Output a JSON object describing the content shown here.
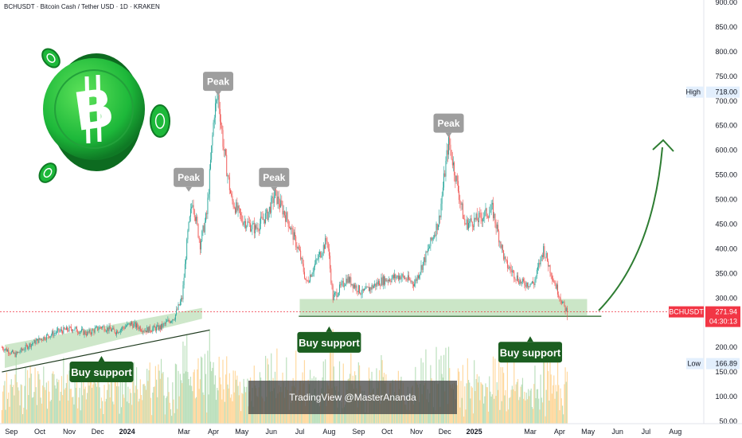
{
  "header": {
    "title": "BCHUSDT · Bitcoin Cash / Tether USD · 1D · KRAKEN"
  },
  "watermark": {
    "text": "TradingView @MasterAnanda"
  },
  "chart_data": {
    "type": "candlestick",
    "symbol": "BCHUSDT",
    "ylim": [
      45,
      905
    ],
    "y_ticks": [
      {
        "value": 50,
        "label": "50.00"
      },
      {
        "value": 100,
        "label": "100.00"
      },
      {
        "value": 150,
        "label": "150.00"
      },
      {
        "value": 200,
        "label": "200.00"
      },
      {
        "value": 250,
        "label": "250.00"
      },
      {
        "value": 300,
        "label": "300.00"
      },
      {
        "value": 350,
        "label": "350.00"
      },
      {
        "value": 400,
        "label": "400.00"
      },
      {
        "value": 450,
        "label": "450.00"
      },
      {
        "value": 500,
        "label": "500.00"
      },
      {
        "value": 550,
        "label": "550.00"
      },
      {
        "value": 600,
        "label": "600.00"
      },
      {
        "value": 650,
        "label": "650.00"
      },
      {
        "value": 700,
        "label": "700.00"
      },
      {
        "value": 750,
        "label": "750.00"
      },
      {
        "value": 800,
        "label": "800.00"
      },
      {
        "value": 850,
        "label": "850.00"
      },
      {
        "value": 900,
        "label": "900.00"
      }
    ],
    "x_ticks": [
      {
        "date": "2023-09-01",
        "label": "Sep",
        "bold": false
      },
      {
        "date": "2023-10-01",
        "label": "Oct",
        "bold": false
      },
      {
        "date": "2023-11-01",
        "label": "Nov",
        "bold": false
      },
      {
        "date": "2023-12-01",
        "label": "Dec",
        "bold": false
      },
      {
        "date": "2024-01-01",
        "label": "2024",
        "bold": true
      },
      {
        "date": "2024-03-01",
        "label": "Mar",
        "bold": false
      },
      {
        "date": "2024-04-01",
        "label": "Apr",
        "bold": false
      },
      {
        "date": "2024-05-01",
        "label": "May",
        "bold": false
      },
      {
        "date": "2024-06-01",
        "label": "Jun",
        "bold": false
      },
      {
        "date": "2024-07-01",
        "label": "Jul",
        "bold": false
      },
      {
        "date": "2024-08-01",
        "label": "Aug",
        "bold": false
      },
      {
        "date": "2024-09-01",
        "label": "Sep",
        "bold": false
      },
      {
        "date": "2024-10-01",
        "label": "Oct",
        "bold": false
      },
      {
        "date": "2024-11-01",
        "label": "Nov",
        "bold": false
      },
      {
        "date": "2024-12-01",
        "label": "Dec",
        "bold": false
      },
      {
        "date": "2025-01-01",
        "label": "2025",
        "bold": true
      },
      {
        "date": "2025-03-01",
        "label": "Mar",
        "bold": false
      },
      {
        "date": "2025-04-01",
        "label": "Apr",
        "bold": false
      },
      {
        "date": "2025-05-01",
        "label": "May",
        "bold": false
      },
      {
        "date": "2025-06-01",
        "label": "Jun",
        "bold": false
      },
      {
        "date": "2025-07-01",
        "label": "Jul",
        "bold": false
      },
      {
        "date": "2025-08-01",
        "label": "Aug",
        "bold": false
      }
    ],
    "x_range": [
      "2023-08-20",
      "2025-08-31"
    ],
    "price_path": [
      {
        "date": "2023-08-22",
        "close": 200
      },
      {
        "date": "2023-09-05",
        "close": 185
      },
      {
        "date": "2023-09-20",
        "close": 205
      },
      {
        "date": "2023-10-05",
        "close": 220
      },
      {
        "date": "2023-10-20",
        "close": 232
      },
      {
        "date": "2023-11-05",
        "close": 238
      },
      {
        "date": "2023-11-20",
        "close": 228
      },
      {
        "date": "2023-12-05",
        "close": 242
      },
      {
        "date": "2023-12-20",
        "close": 232
      },
      {
        "date": "2024-01-05",
        "close": 248
      },
      {
        "date": "2024-01-20",
        "close": 235
      },
      {
        "date": "2024-02-05",
        "close": 240
      },
      {
        "date": "2024-02-20",
        "close": 262
      },
      {
        "date": "2024-02-28",
        "close": 300
      },
      {
        "date": "2024-03-05",
        "close": 430
      },
      {
        "date": "2024-03-10",
        "close": 500
      },
      {
        "date": "2024-03-18",
        "close": 410
      },
      {
        "date": "2024-03-25",
        "close": 470
      },
      {
        "date": "2024-04-02",
        "close": 680
      },
      {
        "date": "2024-04-06",
        "close": 710
      },
      {
        "date": "2024-04-12",
        "close": 600
      },
      {
        "date": "2024-04-20",
        "close": 500
      },
      {
        "date": "2024-05-01",
        "close": 460
      },
      {
        "date": "2024-05-15",
        "close": 440
      },
      {
        "date": "2024-05-28",
        "close": 470
      },
      {
        "date": "2024-06-05",
        "close": 510
      },
      {
        "date": "2024-06-18",
        "close": 460
      },
      {
        "date": "2024-07-01",
        "close": 390
      },
      {
        "date": "2024-07-08",
        "close": 330
      },
      {
        "date": "2024-07-20",
        "close": 380
      },
      {
        "date": "2024-07-30",
        "close": 420
      },
      {
        "date": "2024-08-05",
        "close": 300
      },
      {
        "date": "2024-08-20",
        "close": 340
      },
      {
        "date": "2024-09-05",
        "close": 310
      },
      {
        "date": "2024-09-25",
        "close": 335
      },
      {
        "date": "2024-10-15",
        "close": 345
      },
      {
        "date": "2024-10-30",
        "close": 330
      },
      {
        "date": "2024-11-12",
        "close": 390
      },
      {
        "date": "2024-11-25",
        "close": 460
      },
      {
        "date": "2024-12-05",
        "close": 620
      },
      {
        "date": "2024-12-15",
        "close": 520
      },
      {
        "date": "2024-12-22",
        "close": 450
      },
      {
        "date": "2025-01-05",
        "close": 460
      },
      {
        "date": "2025-01-20",
        "close": 480
      },
      {
        "date": "2025-02-03",
        "close": 370
      },
      {
        "date": "2025-02-20",
        "close": 330
      },
      {
        "date": "2025-03-05",
        "close": 330
      },
      {
        "date": "2025-03-15",
        "close": 400
      },
      {
        "date": "2025-03-25",
        "close": 340
      },
      {
        "date": "2025-04-05",
        "close": 285
      },
      {
        "date": "2025-04-09",
        "close": 272
      }
    ],
    "high": {
      "label": "High",
      "value": 718,
      "text": "718.00"
    },
    "low": {
      "label": "Low",
      "value": 166.89,
      "text": "166.89"
    },
    "last_price": {
      "symbol": "BCHUSDT",
      "value": 271.94,
      "text": "271.94",
      "countdown": "04:30:13"
    },
    "annotations": {
      "peaks": [
        {
          "label": "Peak",
          "date": "2024-03-06",
          "value": 545
        },
        {
          "label": "Peak",
          "date": "2024-04-06",
          "value": 740
        },
        {
          "label": "Peak",
          "date": "2024-06-04",
          "value": 545
        },
        {
          "label": "Peak",
          "date": "2024-12-05",
          "value": 655
        }
      ],
      "buy_supports": [
        {
          "label": "Buy support",
          "date": "2023-12-05",
          "value": 150
        },
        {
          "label": "Buy support",
          "date": "2024-08-01",
          "value": 210
        },
        {
          "label": "Buy support",
          "date": "2025-03-01",
          "value": 190
        }
      ],
      "support_zone": {
        "from": "2024-07-01",
        "to": "2025-04-30",
        "low": 265,
        "high": 298
      },
      "support_line": {
        "from": "2024-06-30",
        "to": "2025-05-15",
        "value": 263
      }
    },
    "colors": {
      "up": "#26a69a",
      "down": "#ef5350",
      "zone": "#b9ddb4",
      "annotation_green": "#1b5e20",
      "peak_gray": "#9e9e9e",
      "arrow": "#2e7d32",
      "price_tag": "#f23645"
    }
  },
  "logo": {
    "symbol": "B"
  }
}
